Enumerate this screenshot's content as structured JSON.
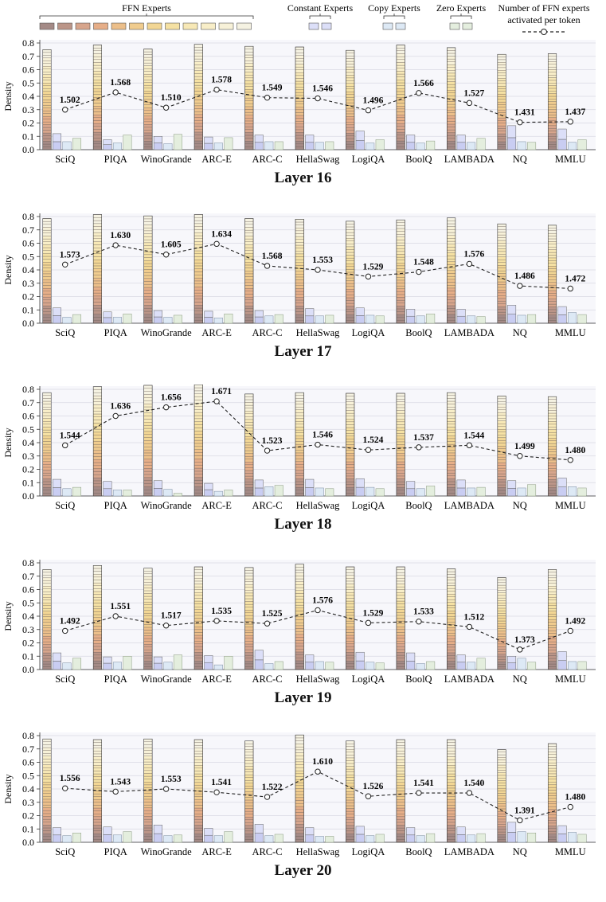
{
  "legend": {
    "ffn_label": "FFN Experts",
    "constant_label": "Constant Experts",
    "copy_label": "Copy Experts",
    "zero_label": "Zero Experts",
    "line_label_1": "Number of FFN experts",
    "line_label_2": "activated per token"
  },
  "colors": {
    "ffn_palette": [
      "#a48a86",
      "#bb9588",
      "#d7a58c",
      "#e6ae88",
      "#ecbf8a",
      "#f0cc8e",
      "#f2d694",
      "#f5e1a3",
      "#f7e8b6",
      "#f8eec8",
      "#f7f1d8",
      "#f5f2e2"
    ],
    "constant": "#dcdff8",
    "copy": "#dde9f5",
    "zero": "#e4eede",
    "grid": "#d9d9e3",
    "panel_bg": "#f7f7fb",
    "line": "#222222"
  },
  "chart_data": [
    {
      "type": "bar",
      "title": "Layer 16",
      "ylabel": "Density",
      "ylim": [
        0,
        0.8
      ],
      "yticks": [
        "0.0",
        "0.1",
        "0.2",
        "0.3",
        "0.4",
        "0.5",
        "0.6",
        "0.7",
        "0.8"
      ],
      "categories": [
        "SciQ",
        "PIQA",
        "WinoGrande",
        "ARC-E",
        "ARC-C",
        "HellaSwag",
        "LogiQA",
        "BoolQ",
        "LAMBADA",
        "NQ",
        "MMLU"
      ],
      "series": [
        {
          "name": "FFN Experts",
          "values": [
            0.75,
            0.785,
            0.755,
            0.79,
            0.775,
            0.77,
            0.745,
            0.785,
            0.765,
            0.715,
            0.72
          ]
        },
        {
          "name": "Constant Experts",
          "values": [
            0.12,
            0.075,
            0.1,
            0.095,
            0.11,
            0.11,
            0.14,
            0.11,
            0.11,
            0.18,
            0.155
          ]
        },
        {
          "name": "Copy Experts",
          "values": [
            0.06,
            0.05,
            0.045,
            0.05,
            0.06,
            0.055,
            0.05,
            0.05,
            0.055,
            0.06,
            0.055
          ]
        },
        {
          "name": "Zero Experts",
          "values": [
            0.085,
            0.11,
            0.115,
            0.09,
            0.06,
            0.06,
            0.075,
            0.065,
            0.085,
            0.055,
            0.075
          ]
        },
        {
          "name": "Number of FFN experts activated per token",
          "density": [
            0.3,
            0.43,
            0.315,
            0.45,
            0.39,
            0.385,
            0.295,
            0.425,
            0.35,
            0.205,
            0.21
          ],
          "labels": [
            "1.502",
            "1.568",
            "1.510",
            "1.578",
            "1.549",
            "1.546",
            "1.496",
            "1.566",
            "1.527",
            "1.431",
            "1.437"
          ]
        }
      ]
    },
    {
      "type": "bar",
      "title": "Layer 17",
      "ylabel": "Density",
      "ylim": [
        0,
        0.8
      ],
      "yticks": [
        "0.0",
        "0.1",
        "0.2",
        "0.3",
        "0.4",
        "0.5",
        "0.6",
        "0.7",
        "0.8"
      ],
      "categories": [
        "SciQ",
        "PIQA",
        "WinoGrande",
        "ARC-E",
        "ARC-C",
        "HellaSwag",
        "LogiQA",
        "BoolQ",
        "LAMBADA",
        "NQ",
        "MMLU"
      ],
      "series": [
        {
          "name": "FFN Experts",
          "values": [
            0.785,
            0.815,
            0.805,
            0.815,
            0.785,
            0.78,
            0.765,
            0.775,
            0.79,
            0.745,
            0.735
          ]
        },
        {
          "name": "Constant Experts",
          "values": [
            0.115,
            0.085,
            0.095,
            0.09,
            0.095,
            0.11,
            0.115,
            0.105,
            0.105,
            0.135,
            0.125
          ]
        },
        {
          "name": "Copy Experts",
          "values": [
            0.045,
            0.045,
            0.045,
            0.04,
            0.055,
            0.055,
            0.06,
            0.055,
            0.055,
            0.06,
            0.08
          ]
        },
        {
          "name": "Zero Experts",
          "values": [
            0.065,
            0.07,
            0.06,
            0.07,
            0.065,
            0.06,
            0.055,
            0.07,
            0.05,
            0.065,
            0.065
          ]
        },
        {
          "name": "Number of FFN experts activated per token",
          "density": [
            0.44,
            0.585,
            0.515,
            0.595,
            0.43,
            0.4,
            0.35,
            0.385,
            0.445,
            0.28,
            0.26
          ],
          "labels": [
            "1.573",
            "1.630",
            "1.605",
            "1.634",
            "1.568",
            "1.553",
            "1.529",
            "1.548",
            "1.576",
            "1.486",
            "1.472"
          ]
        }
      ]
    },
    {
      "type": "bar",
      "title": "Layer 18",
      "ylabel": "Density",
      "ylim": [
        0,
        0.8
      ],
      "yticks": [
        "0.0",
        "0.1",
        "0.2",
        "0.3",
        "0.4",
        "0.5",
        "0.6",
        "0.7",
        "0.8"
      ],
      "categories": [
        "SciQ",
        "PIQA",
        "WinoGrande",
        "ARC-E",
        "ARC-C",
        "HellaSwag",
        "LogiQA",
        "BoolQ",
        "LAMBADA",
        "NQ",
        "MMLU"
      ],
      "series": [
        {
          "name": "FFN Experts",
          "values": [
            0.775,
            0.82,
            0.83,
            0.835,
            0.765,
            0.775,
            0.77,
            0.77,
            0.775,
            0.75,
            0.745
          ]
        },
        {
          "name": "Constant Experts",
          "values": [
            0.125,
            0.11,
            0.115,
            0.095,
            0.12,
            0.125,
            0.13,
            0.11,
            0.12,
            0.115,
            0.135
          ]
        },
        {
          "name": "Copy Experts",
          "values": [
            0.055,
            0.045,
            0.05,
            0.035,
            0.07,
            0.06,
            0.065,
            0.055,
            0.06,
            0.06,
            0.07
          ]
        },
        {
          "name": "Zero Experts",
          "values": [
            0.065,
            0.045,
            0.02,
            0.045,
            0.08,
            0.055,
            0.055,
            0.075,
            0.065,
            0.085,
            0.06
          ]
        },
        {
          "name": "Number of FFN experts activated per token",
          "density": [
            0.38,
            0.6,
            0.665,
            0.71,
            0.34,
            0.385,
            0.345,
            0.365,
            0.38,
            0.3,
            0.27
          ],
          "labels": [
            "1.544",
            "1.636",
            "1.656",
            "1.671",
            "1.523",
            "1.546",
            "1.524",
            "1.537",
            "1.544",
            "1.499",
            "1.480"
          ]
        }
      ]
    },
    {
      "type": "bar",
      "title": "Layer 19",
      "ylabel": "Density",
      "ylim": [
        0,
        0.8
      ],
      "yticks": [
        "0.0",
        "0.1",
        "0.2",
        "0.3",
        "0.4",
        "0.5",
        "0.6",
        "0.7",
        "0.8"
      ],
      "categories": [
        "SciQ",
        "PIQA",
        "WinoGrande",
        "ARC-E",
        "ARC-C",
        "HellaSwag",
        "LogiQA",
        "BoolQ",
        "LAMBADA",
        "NQ",
        "MMLU"
      ],
      "series": [
        {
          "name": "FFN Experts",
          "values": [
            0.75,
            0.78,
            0.76,
            0.77,
            0.765,
            0.79,
            0.77,
            0.77,
            0.755,
            0.69,
            0.75
          ]
        },
        {
          "name": "Constant Experts",
          "values": [
            0.125,
            0.095,
            0.095,
            0.105,
            0.145,
            0.11,
            0.13,
            0.125,
            0.11,
            0.1,
            0.135
          ]
        },
        {
          "name": "Copy Experts",
          "values": [
            0.05,
            0.055,
            0.055,
            0.035,
            0.045,
            0.06,
            0.055,
            0.045,
            0.055,
            0.085,
            0.06
          ]
        },
        {
          "name": "Zero Experts",
          "values": [
            0.085,
            0.1,
            0.11,
            0.1,
            0.06,
            0.055,
            0.05,
            0.06,
            0.085,
            0.055,
            0.06
          ]
        },
        {
          "name": "Number of FFN experts activated per token",
          "density": [
            0.29,
            0.4,
            0.33,
            0.365,
            0.345,
            0.445,
            0.35,
            0.36,
            0.32,
            0.15,
            0.29
          ],
          "labels": [
            "1.492",
            "1.551",
            "1.517",
            "1.535",
            "1.525",
            "1.576",
            "1.529",
            "1.533",
            "1.512",
            "1.373",
            "1.492"
          ]
        }
      ]
    },
    {
      "type": "bar",
      "title": "Layer 20",
      "ylabel": "Density",
      "ylim": [
        0,
        0.8
      ],
      "yticks": [
        "0.0",
        "0.1",
        "0.2",
        "0.3",
        "0.4",
        "0.5",
        "0.6",
        "0.7",
        "0.8"
      ],
      "categories": [
        "SciQ",
        "PIQA",
        "WinoGrande",
        "ARC-E",
        "ARC-C",
        "HellaSwag",
        "LogiQA",
        "BoolQ",
        "LAMBADA",
        "NQ",
        "MMLU"
      ],
      "series": [
        {
          "name": "FFN Experts",
          "values": [
            0.775,
            0.77,
            0.775,
            0.77,
            0.76,
            0.805,
            0.76,
            0.77,
            0.77,
            0.695,
            0.74
          ]
        },
        {
          "name": "Constant Experts",
          "values": [
            0.11,
            0.115,
            0.13,
            0.105,
            0.135,
            0.11,
            0.12,
            0.11,
            0.115,
            0.15,
            0.125
          ]
        },
        {
          "name": "Copy Experts",
          "values": [
            0.05,
            0.055,
            0.05,
            0.05,
            0.05,
            0.045,
            0.05,
            0.05,
            0.055,
            0.08,
            0.075
          ]
        },
        {
          "name": "Zero Experts",
          "values": [
            0.07,
            0.08,
            0.055,
            0.08,
            0.06,
            0.045,
            0.06,
            0.065,
            0.065,
            0.07,
            0.06
          ]
        },
        {
          "name": "Number of FFN experts activated per token",
          "density": [
            0.405,
            0.38,
            0.4,
            0.375,
            0.34,
            0.53,
            0.345,
            0.37,
            0.37,
            0.165,
            0.265
          ],
          "labels": [
            "1.556",
            "1.543",
            "1.553",
            "1.541",
            "1.522",
            "1.610",
            "1.526",
            "1.541",
            "1.540",
            "1.391",
            "1.480"
          ]
        }
      ]
    }
  ]
}
